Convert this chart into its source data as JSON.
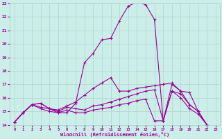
{
  "xlabel": "Windchill (Refroidissement éolien,°C)",
  "bg_color": "#cceee8",
  "line_color": "#990099",
  "xlim": [
    -0.5,
    23.5
  ],
  "ylim": [
    14,
    23
  ],
  "xticks": [
    0,
    1,
    2,
    3,
    4,
    5,
    6,
    7,
    8,
    9,
    10,
    11,
    12,
    13,
    14,
    15,
    16,
    17,
    18,
    19,
    20,
    21,
    22,
    23
  ],
  "yticks": [
    14,
    15,
    16,
    17,
    18,
    19,
    20,
    21,
    22,
    23
  ],
  "x_pts": [
    0,
    1,
    2,
    3,
    4,
    5,
    6,
    7,
    8,
    9,
    10,
    11,
    12,
    13,
    14,
    15,
    16,
    17,
    18,
    19,
    20,
    21,
    22
  ],
  "series1": [
    14.2,
    14.9,
    15.5,
    15.3,
    15.2,
    14.9,
    14.9,
    15.6,
    18.6,
    19.3,
    20.3,
    20.4,
    21.7,
    22.8,
    23.1,
    22.9,
    21.8,
    14.3,
    17.0,
    16.5,
    16.4,
    15.0,
    14.0
  ],
  "series2": [
    14.2,
    14.9,
    15.5,
    15.6,
    15.2,
    15.1,
    15.4,
    15.7,
    16.2,
    16.7,
    17.1,
    17.5,
    16.5,
    16.5,
    16.7,
    16.8,
    16.9,
    17.0,
    17.1,
    16.5,
    15.5,
    15.0,
    14.0
  ],
  "series3": [
    14.2,
    14.9,
    15.5,
    15.6,
    15.2,
    15.0,
    15.3,
    15.2,
    15.1,
    15.4,
    15.5,
    15.7,
    15.9,
    16.1,
    16.3,
    16.5,
    16.6,
    14.3,
    16.5,
    16.3,
    15.5,
    15.0,
    14.0
  ],
  "series4": [
    14.2,
    14.9,
    15.5,
    15.2,
    15.0,
    14.9,
    15.1,
    14.9,
    14.9,
    15.1,
    15.2,
    15.3,
    15.5,
    15.6,
    15.8,
    15.9,
    14.3,
    14.3,
    16.5,
    16.0,
    15.2,
    14.8,
    14.0
  ]
}
